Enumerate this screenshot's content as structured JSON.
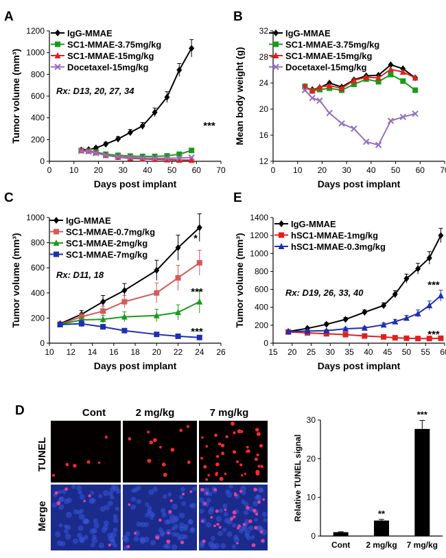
{
  "colors": {
    "black": "#000000",
    "green": "#1a9a1a",
    "red": "#e41e1e",
    "purple": "#9370bf",
    "salmon": "#d45a5a",
    "blue": "#1f2fb0",
    "tunel_bg": "#050000",
    "merge_bg": "#1a2b8c"
  },
  "panel_letters": {
    "A": "A",
    "B": "B",
    "C": "C",
    "D": "D",
    "E": "E"
  },
  "image_panel": {
    "col_labels": [
      "Cont",
      "2 mg/kg",
      "7 mg/kg"
    ],
    "row_labels": [
      "TUNEL",
      "Merge"
    ]
  },
  "chart_data": [
    {
      "id": "A",
      "type": "line",
      "xlabel": "Days post implant",
      "ylabel": "Tumor volume (mm³)",
      "xlim": [
        0,
        70
      ],
      "xticks": [
        0,
        10,
        20,
        30,
        40,
        50,
        60,
        70
      ],
      "ylim": [
        0,
        1200
      ],
      "yticks": [
        0,
        200,
        400,
        600,
        800,
        1000,
        1200
      ],
      "annotation": "Rx: D13, 20, 27, 34",
      "significance": [
        "***"
      ],
      "series": [
        {
          "name": "IgG-MMAE",
          "color": "black",
          "marker": "diamond",
          "x": [
            13,
            16,
            19,
            23,
            28,
            33,
            38,
            43,
            48,
            53,
            58
          ],
          "y": [
            105,
            108,
            122,
            158,
            205,
            265,
            325,
            450,
            590,
            840,
            1040
          ],
          "err": [
            10,
            12,
            15,
            18,
            22,
            28,
            32,
            40,
            50,
            60,
            80
          ]
        },
        {
          "name": "SC1-MMAE-3.75mg/kg",
          "color": "green",
          "marker": "square",
          "x": [
            13,
            16,
            19,
            23,
            28,
            33,
            38,
            43,
            48,
            53,
            58
          ],
          "y": [
            100,
            95,
            85,
            65,
            55,
            48,
            45,
            45,
            50,
            65,
            100
          ],
          "err": [
            10,
            10,
            10,
            8,
            8,
            6,
            6,
            6,
            6,
            8,
            10
          ]
        },
        {
          "name": "SC1-MMAE-15mg/kg",
          "color": "red",
          "marker": "triangle",
          "x": [
            13,
            16,
            19,
            23,
            28,
            33,
            38,
            43,
            48,
            53,
            58
          ],
          "y": [
            100,
            95,
            80,
            55,
            38,
            28,
            22,
            18,
            15,
            12,
            10
          ],
          "err": [
            8,
            8,
            8,
            6,
            5,
            4,
            4,
            3,
            3,
            2,
            2
          ]
        },
        {
          "name": "Docetaxel-15mg/kg",
          "color": "purple",
          "marker": "x",
          "x": [
            13,
            16,
            19,
            23,
            28,
            33,
            38,
            43,
            48,
            53,
            58
          ],
          "y": [
            95,
            90,
            75,
            55,
            42,
            35,
            30,
            28,
            28,
            30,
            35
          ],
          "err": [
            8,
            8,
            8,
            6,
            5,
            4,
            4,
            3,
            3,
            3,
            3
          ]
        }
      ]
    },
    {
      "id": "B",
      "type": "line",
      "xlabel": "Days post implant",
      "ylabel": "Mean body weight (g)",
      "xlim": [
        0,
        70
      ],
      "xticks": [
        0,
        10,
        20,
        30,
        40,
        50,
        60,
        70
      ],
      "ylim": [
        12,
        32
      ],
      "yticks": [
        12,
        16,
        20,
        24,
        28,
        32
      ],
      "series": [
        {
          "name": "IgG-MMAE",
          "color": "black",
          "marker": "diamond",
          "x": [
            13,
            16,
            19,
            23,
            28,
            33,
            38,
            43,
            48,
            53,
            58
          ],
          "y": [
            23.2,
            23.0,
            23.3,
            24.0,
            23.4,
            24.5,
            25.1,
            25.2,
            26.8,
            26.2,
            24.8
          ]
        },
        {
          "name": "SC1-MMAE-3.75mg/kg",
          "color": "green",
          "marker": "square",
          "x": [
            13,
            16,
            19,
            23,
            28,
            33,
            38,
            43,
            48,
            53,
            58
          ],
          "y": [
            23.5,
            22.8,
            23.0,
            23.2,
            22.9,
            23.8,
            24.6,
            24.2,
            25.3,
            24.3,
            22.9
          ]
        },
        {
          "name": "SC1-MMAE-15mg/kg",
          "color": "red",
          "marker": "triangle",
          "x": [
            13,
            16,
            19,
            23,
            28,
            33,
            38,
            43,
            48,
            53,
            58
          ],
          "y": [
            23.5,
            22.8,
            23.4,
            23.6,
            23.2,
            24.4,
            24.9,
            24.8,
            26.1,
            25.7,
            24.8
          ]
        },
        {
          "name": "Docetaxel-15mg/kg",
          "color": "purple",
          "marker": "x",
          "x": [
            13,
            16,
            19,
            23,
            28,
            33,
            38,
            43,
            48,
            53,
            58
          ],
          "y": [
            22.9,
            21.7,
            21.3,
            19.4,
            17.8,
            17.0,
            15.0,
            14.5,
            18.2,
            18.8,
            19.3
          ]
        }
      ]
    },
    {
      "id": "C",
      "type": "line",
      "xlabel": "Days post implant",
      "ylabel": "Tumor volume (mm³)",
      "xlim": [
        10,
        26
      ],
      "xticks": [
        10,
        12,
        14,
        16,
        18,
        20,
        22,
        24,
        26
      ],
      "ylim": [
        0,
        1000
      ],
      "yticks": [
        0,
        200,
        400,
        600,
        800,
        1000
      ],
      "annotation": "Rx: D11, 18",
      "significance": [
        "*",
        "***",
        "***"
      ],
      "series": [
        {
          "name": "IgG-MMAE",
          "color": "black",
          "marker": "diamond",
          "x": [
            11,
            13,
            15,
            17,
            20,
            22,
            24
          ],
          "y": [
            155,
            230,
            330,
            420,
            580,
            760,
            920
          ],
          "err": [
            15,
            30,
            50,
            55,
            80,
            100,
            110
          ]
        },
        {
          "name": "SC1-MMAE-0.7mg/kg",
          "color": "salmon",
          "marker": "square",
          "x": [
            11,
            13,
            15,
            17,
            20,
            22,
            24
          ],
          "y": [
            150,
            210,
            255,
            330,
            400,
            520,
            640
          ],
          "err": [
            15,
            30,
            40,
            50,
            80,
            100,
            100
          ]
        },
        {
          "name": "SC1-MMAE-2mg/kg",
          "color": "green",
          "marker": "triangle",
          "x": [
            11,
            13,
            15,
            17,
            20,
            22,
            24
          ],
          "y": [
            150,
            185,
            190,
            210,
            220,
            245,
            330
          ],
          "err": [
            12,
            25,
            30,
            40,
            50,
            60,
            90
          ]
        },
        {
          "name": "SC1-MMAE-7mg/kg",
          "color": "blue",
          "marker": "square",
          "x": [
            11,
            13,
            15,
            17,
            20,
            22,
            24
          ],
          "y": [
            148,
            155,
            130,
            100,
            70,
            55,
            45
          ],
          "err": [
            12,
            25,
            20,
            15,
            10,
            8,
            8
          ]
        }
      ]
    },
    {
      "id": "E",
      "type": "line",
      "xlabel": "Days post implant",
      "ylabel": "Tumor volume (mm³)",
      "xlim": [
        15,
        60
      ],
      "xticks": [
        15,
        20,
        25,
        30,
        35,
        40,
        45,
        50,
        55,
        60
      ],
      "ylim": [
        0,
        1400
      ],
      "yticks": [
        0,
        200,
        400,
        600,
        800,
        1000,
        1200,
        1400
      ],
      "annotation": "Rx: D19, 26, 33, 40",
      "significance": [
        "***",
        "***"
      ],
      "series": [
        {
          "name": "IgG-MMAE",
          "color": "black",
          "marker": "diamond",
          "x": [
            19,
            24,
            29,
            34,
            39,
            44,
            47,
            50,
            53,
            56,
            59
          ],
          "y": [
            130,
            165,
            210,
            265,
            345,
            420,
            545,
            720,
            830,
            950,
            1200
          ],
          "err": [
            12,
            15,
            18,
            22,
            25,
            30,
            40,
            50,
            60,
            70,
            80
          ]
        },
        {
          "name": "hSC1-MMAE-1mg/kg",
          "color": "red",
          "marker": "square",
          "x": [
            19,
            24,
            29,
            34,
            39,
            44,
            47,
            50,
            53,
            56,
            59
          ],
          "y": [
            125,
            115,
            105,
            95,
            80,
            70,
            60,
            55,
            52,
            52,
            55
          ],
          "err": [
            10,
            10,
            10,
            10,
            8,
            8,
            6,
            6,
            6,
            6,
            6
          ]
        },
        {
          "name": "hSC1-MMAE-0.3mg/kg",
          "color": "blue",
          "marker": "triangle",
          "x": [
            19,
            24,
            29,
            34,
            39,
            44,
            47,
            50,
            53,
            56,
            59
          ],
          "y": [
            130,
            135,
            140,
            160,
            170,
            205,
            240,
            280,
            330,
            420,
            530
          ],
          "err": [
            10,
            12,
            12,
            15,
            15,
            20,
            25,
            30,
            40,
            50,
            60
          ]
        }
      ]
    },
    {
      "id": "D",
      "type": "bar",
      "ylabel": "Relative TUNEL signal",
      "categories": [
        "Cont",
        "2 mg/kg",
        "7 mg/kg"
      ],
      "values": [
        1.0,
        4.0,
        27.7
      ],
      "err": [
        0.1,
        0.3,
        2.2
      ],
      "significance": [
        "",
        "**",
        "***"
      ],
      "ylim": [
        0,
        30
      ],
      "yticks": [
        0,
        10,
        20,
        30
      ]
    }
  ]
}
